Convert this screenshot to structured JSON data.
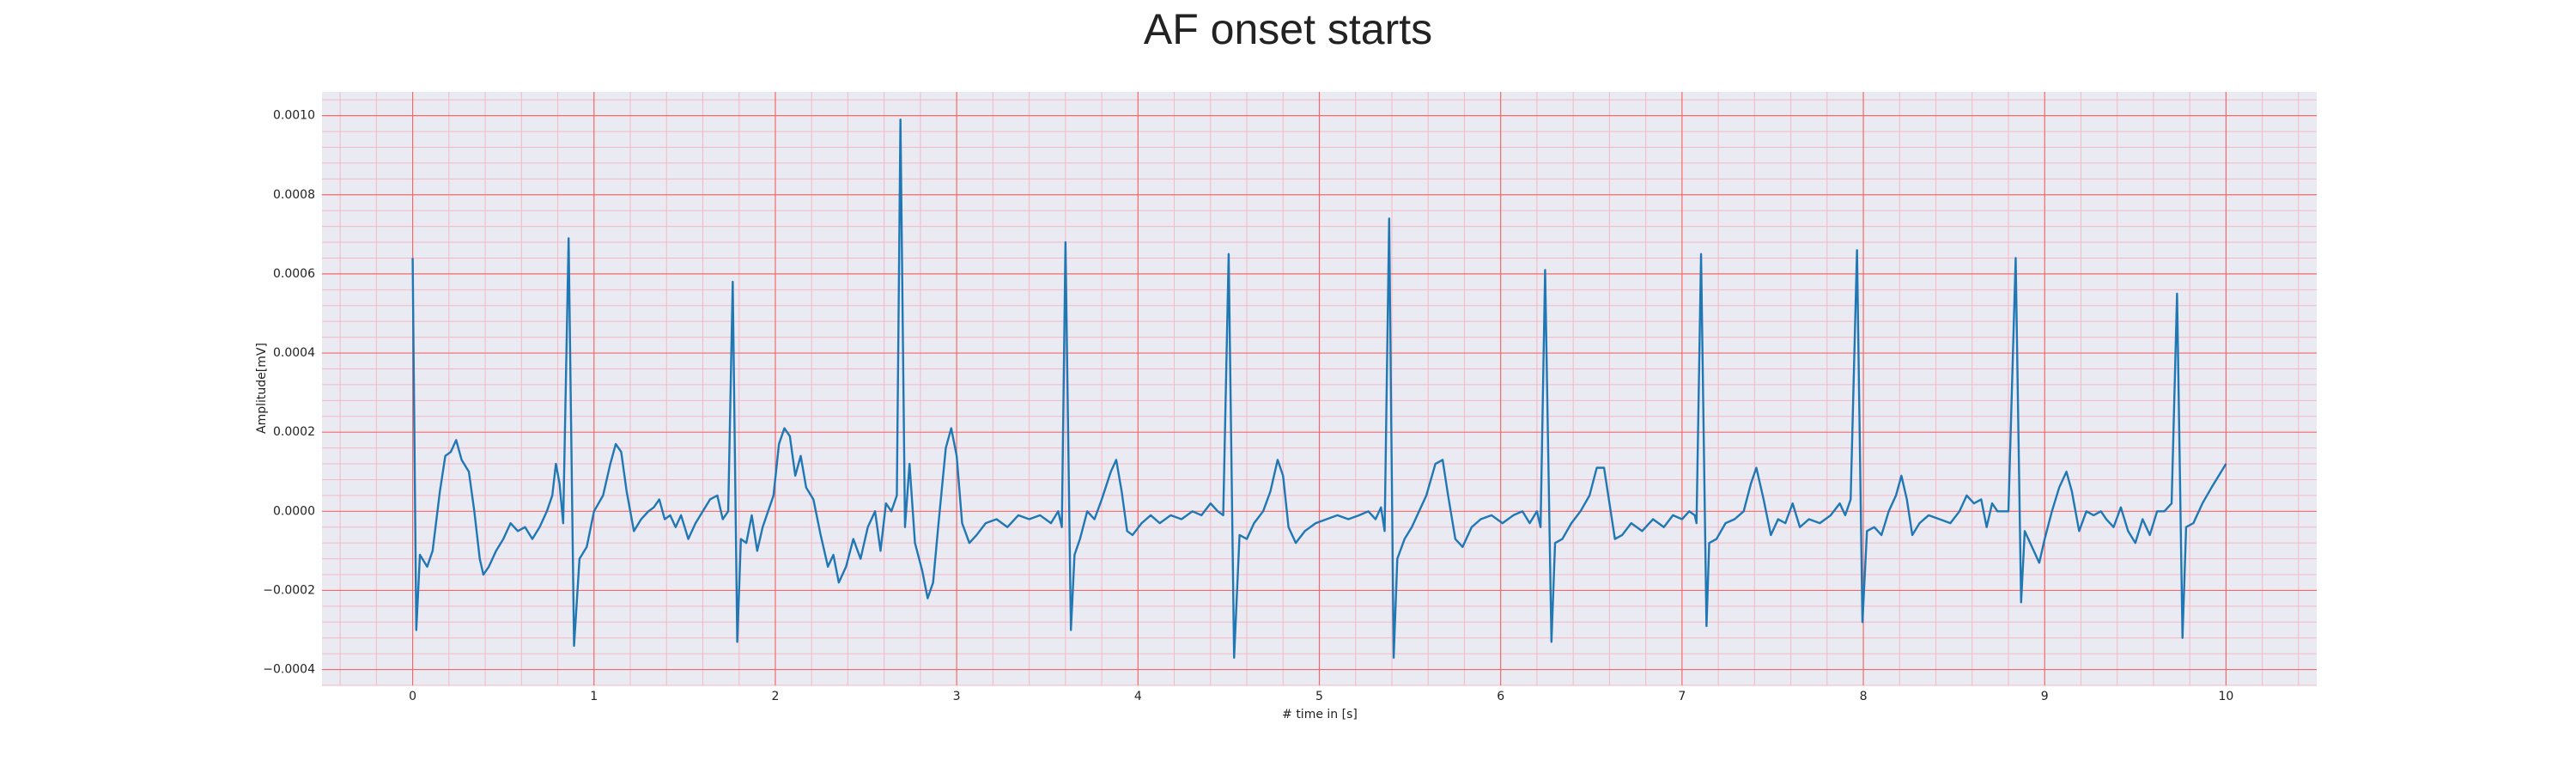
{
  "chart_data": {
    "type": "line",
    "title": "AF onset starts",
    "x_label": "# time in [s]",
    "y_label": "Amplitude[mV]",
    "x": [
      0,
      0.02,
      0.04,
      0.08,
      0.11,
      0.15,
      0.18,
      0.21,
      0.24,
      0.27,
      0.31,
      0.34,
      0.37,
      0.39,
      0.42,
      0.46,
      0.5,
      0.54,
      0.58,
      0.62,
      0.66,
      0.7,
      0.74,
      0.77,
      0.79,
      0.81,
      0.83,
      0.86,
      0.89,
      0.92,
      0.96,
      1.0,
      1.05,
      1.09,
      1.12,
      1.15,
      1.18,
      1.22,
      1.26,
      1.3,
      1.33,
      1.36,
      1.39,
      1.42,
      1.45,
      1.48,
      1.52,
      1.56,
      1.6,
      1.64,
      1.68,
      1.71,
      1.74,
      1.765,
      1.79,
      1.81,
      1.84,
      1.87,
      1.9,
      1.93,
      1.96,
      1.99,
      2.02,
      2.05,
      2.08,
      2.11,
      2.14,
      2.17,
      2.21,
      2.25,
      2.29,
      2.32,
      2.35,
      2.39,
      2.43,
      2.47,
      2.51,
      2.55,
      2.58,
      2.61,
      2.64,
      2.67,
      2.69,
      2.715,
      2.74,
      2.77,
      2.81,
      2.84,
      2.87,
      2.9,
      2.94,
      2.97,
      3.0,
      3.03,
      3.07,
      3.11,
      3.16,
      3.22,
      3.28,
      3.34,
      3.4,
      3.46,
      3.52,
      3.56,
      3.58,
      3.6,
      3.63,
      3.65,
      3.68,
      3.72,
      3.76,
      3.8,
      3.85,
      3.88,
      3.91,
      3.94,
      3.97,
      4.02,
      4.07,
      4.12,
      4.18,
      4.24,
      4.3,
      4.35,
      4.4,
      4.44,
      4.47,
      4.5,
      4.53,
      4.56,
      4.6,
      4.64,
      4.69,
      4.73,
      4.77,
      4.8,
      4.83,
      4.87,
      4.92,
      4.98,
      5.04,
      5.1,
      5.16,
      5.22,
      5.27,
      5.31,
      5.34,
      5.36,
      5.385,
      5.41,
      5.43,
      5.47,
      5.51,
      5.55,
      5.59,
      5.64,
      5.68,
      5.71,
      5.75,
      5.79,
      5.84,
      5.89,
      5.95,
      6.01,
      6.07,
      6.12,
      6.16,
      6.2,
      6.22,
      6.245,
      6.28,
      6.3,
      6.34,
      6.39,
      6.44,
      6.49,
      6.53,
      6.57,
      6.6,
      6.63,
      6.67,
      6.72,
      6.78,
      6.84,
      6.9,
      6.95,
      7.0,
      7.04,
      7.07,
      7.08,
      7.105,
      7.135,
      7.15,
      7.19,
      7.24,
      7.29,
      7.34,
      7.38,
      7.41,
      7.45,
      7.49,
      7.53,
      7.57,
      7.61,
      7.65,
      7.7,
      7.76,
      7.82,
      7.87,
      7.9,
      7.93,
      7.965,
      7.995,
      8.02,
      8.06,
      8.1,
      8.14,
      8.18,
      8.21,
      8.24,
      8.27,
      8.31,
      8.36,
      8.42,
      8.48,
      8.53,
      8.57,
      8.61,
      8.65,
      8.68,
      8.71,
      8.74,
      8.8,
      8.84,
      8.87,
      8.89,
      8.93,
      8.97,
      9.0,
      9.04,
      9.08,
      9.12,
      9.15,
      9.19,
      9.23,
      9.27,
      9.31,
      9.34,
      9.38,
      9.42,
      9.46,
      9.5,
      9.54,
      9.58,
      9.62,
      9.66,
      9.7,
      9.73,
      9.76,
      9.78,
      9.82,
      9.87,
      9.92,
      9.96,
      10.0
    ],
    "series": [
      {
        "color": "#1f77b4",
        "values": [
          0.00064,
          -0.0003,
          -0.00011,
          -0.00014,
          -0.0001,
          5e-05,
          0.00014,
          0.00015,
          0.00018,
          0.00013,
          0.0001,
          0.0,
          -0.00012,
          -0.00016,
          -0.00014,
          -0.0001,
          -7e-05,
          -3e-05,
          -5e-05,
          -4e-05,
          -7e-05,
          -4e-05,
          0.0,
          4e-05,
          0.00012,
          7e-05,
          -3e-05,
          0.00069,
          -0.00034,
          -0.00012,
          -9e-05,
          0.0,
          4e-05,
          0.00012,
          0.00017,
          0.00015,
          5e-05,
          -5e-05,
          -2e-05,
          0.0,
          1e-05,
          3e-05,
          -2e-05,
          -1e-05,
          -4e-05,
          -1e-05,
          -7e-05,
          -3e-05,
          0.0,
          3e-05,
          4e-05,
          -2e-05,
          0.0,
          0.00058,
          -0.00033,
          -7e-05,
          -8e-05,
          -1e-05,
          -0.0001,
          -4e-05,
          0.0,
          4e-05,
          0.00017,
          0.00021,
          0.00019,
          9e-05,
          0.00014,
          6e-05,
          3e-05,
          -6e-05,
          -0.00014,
          -0.00011,
          -0.00018,
          -0.00014,
          -7e-05,
          -0.00012,
          -4e-05,
          0.0,
          -0.0001,
          2e-05,
          0.0,
          4e-05,
          0.00099,
          -4e-05,
          0.00012,
          -8e-05,
          -0.00015,
          -0.00022,
          -0.00018,
          -3e-05,
          0.00016,
          0.00021,
          0.00014,
          -3e-05,
          -8e-05,
          -6e-05,
          -3e-05,
          -2e-05,
          -4e-05,
          -1e-05,
          -2e-05,
          -1e-05,
          -3e-05,
          0.0,
          -4e-05,
          0.00068,
          -0.0003,
          -0.00011,
          -7e-05,
          0.0,
          -2e-05,
          3e-05,
          0.0001,
          0.00013,
          5e-05,
          -5e-05,
          -6e-05,
          -3e-05,
          -1e-05,
          -3e-05,
          -1e-05,
          -2e-05,
          0.0,
          -1e-05,
          2e-05,
          0.0,
          -1e-05,
          0.00065,
          -0.00037,
          -6e-05,
          -7e-05,
          -3e-05,
          0.0,
          5e-05,
          0.00013,
          9e-05,
          -4e-05,
          -8e-05,
          -5e-05,
          -3e-05,
          -2e-05,
          -1e-05,
          -2e-05,
          -1e-05,
          0.0,
          -2e-05,
          1e-05,
          -5e-05,
          0.00074,
          -0.00037,
          -0.00012,
          -7e-05,
          -4e-05,
          0.0,
          4e-05,
          0.00012,
          0.00013,
          4e-05,
          -7e-05,
          -9e-05,
          -4e-05,
          -2e-05,
          -1e-05,
          -3e-05,
          -1e-05,
          0.0,
          -3e-05,
          0.0,
          -4e-05,
          0.00061,
          -0.00033,
          -8e-05,
          -7e-05,
          -3e-05,
          0.0,
          4e-05,
          0.00011,
          0.00011,
          2e-05,
          -7e-05,
          -6e-05,
          -3e-05,
          -5e-05,
          -2e-05,
          -4e-05,
          -1e-05,
          -2e-05,
          0.0,
          -1e-05,
          -3e-05,
          0.00065,
          -0.00029,
          -8e-05,
          -7e-05,
          -3e-05,
          -2e-05,
          0.0,
          7e-05,
          0.00011,
          3e-05,
          -6e-05,
          -2e-05,
          -3e-05,
          2e-05,
          -4e-05,
          -2e-05,
          -3e-05,
          -1e-05,
          2e-05,
          -1e-05,
          3e-05,
          0.00066,
          -0.00028,
          -5e-05,
          -4e-05,
          -6e-05,
          0.0,
          4e-05,
          9e-05,
          3e-05,
          -6e-05,
          -3e-05,
          -1e-05,
          -2e-05,
          -3e-05,
          0.0,
          4e-05,
          2e-05,
          3e-05,
          -4e-05,
          2e-05,
          0.0,
          0.0,
          0.00064,
          -0.00023,
          -5e-05,
          -9e-05,
          -0.00013,
          -7e-05,
          0.0,
          6e-05,
          0.0001,
          5e-05,
          -5e-05,
          0.0,
          -1e-05,
          0.0,
          -2e-05,
          -4e-05,
          1e-05,
          -5e-05,
          -8e-05,
          -2e-05,
          -6e-05,
          0.0,
          0.0,
          2e-05,
          0.00055,
          -0.00032,
          -4e-05,
          -3e-05,
          2e-05,
          6e-05,
          9e-05,
          0.00012
        ]
      }
    ],
    "xlim": [
      -0.5,
      10.5
    ],
    "xticks": [
      0,
      1,
      2,
      3,
      4,
      5,
      6,
      7,
      8,
      9,
      10
    ],
    "ylim": [
      -0.00044,
      0.00106
    ],
    "yticks": [
      {
        "value": -0.0004,
        "label": "−0.0004"
      },
      {
        "value": -0.0002,
        "label": "−0.0002"
      },
      {
        "value": 0,
        "label": "0.0000"
      },
      {
        "value": 0.0002,
        "label": "0.0002"
      },
      {
        "value": 0.0004,
        "label": "0.0004"
      },
      {
        "value": 0.0006,
        "label": "0.0006"
      },
      {
        "value": 0.0008,
        "label": "0.0008"
      },
      {
        "value": 0.001,
        "label": "0.0010"
      }
    ],
    "grid": true,
    "minor_grid": true
  }
}
